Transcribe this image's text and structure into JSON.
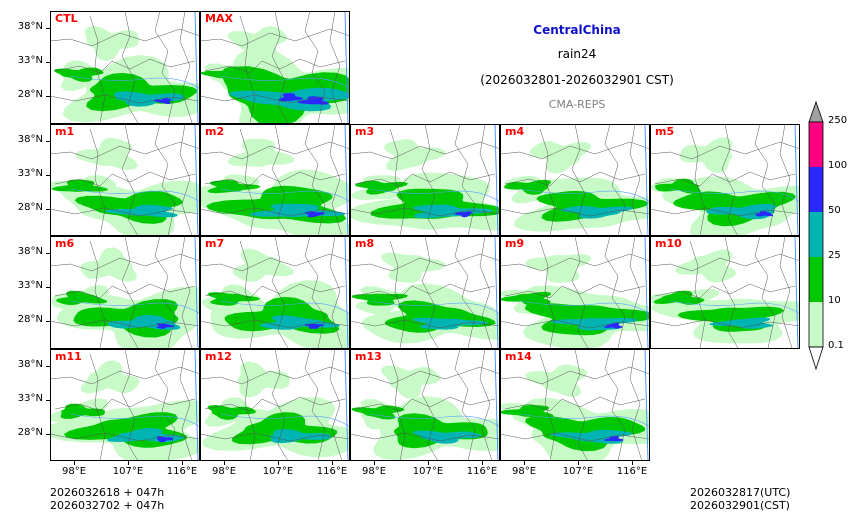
{
  "header": {
    "region": "CentralChina",
    "variable": "rain24",
    "period": "(2026032801-2026032901 CST)",
    "source": "CMA-REPS"
  },
  "colors": {
    "title": "#1010cc",
    "label": "#ff0000",
    "source": "#808080"
  },
  "panels": [
    {
      "label": "CTL",
      "intensity": 1.0
    },
    {
      "label": "MAX",
      "intensity": 1.6
    },
    {
      "label": "m1",
      "intensity": 0.9
    },
    {
      "label": "m2",
      "intensity": 1.1
    },
    {
      "label": "m3",
      "intensity": 1.0
    },
    {
      "label": "m4",
      "intensity": 0.9
    },
    {
      "label": "m5",
      "intensity": 1.0
    },
    {
      "label": "m6",
      "intensity": 1.0
    },
    {
      "label": "m7",
      "intensity": 1.0
    },
    {
      "label": "m8",
      "intensity": 0.9
    },
    {
      "label": "m9",
      "intensity": 1.0
    },
    {
      "label": "m10",
      "intensity": 0.8
    },
    {
      "label": "m11",
      "intensity": 1.0
    },
    {
      "label": "m12",
      "intensity": 0.9
    },
    {
      "label": "m13",
      "intensity": 0.9
    },
    {
      "label": "m14",
      "intensity": 1.0
    }
  ],
  "chart_data": {
    "type": "heatmap",
    "title": "CentralChina rain24 (2026032801-2026032901 CST)",
    "latitude_ticks": [
      "38°N",
      "33°N",
      "28°N"
    ],
    "longitude_ticks": [
      "98°E",
      "107°E",
      "116°E"
    ],
    "lat_values": [
      38,
      33,
      28
    ],
    "lon_values": [
      98,
      107,
      116
    ],
    "lon_range": [
      94,
      119
    ],
    "lat_range": [
      24,
      40.5
    ],
    "colorbar": {
      "levels": [
        "0.1",
        "10",
        "25",
        "50",
        "100",
        "250"
      ],
      "colors": [
        "#c8fac8",
        "#00c800",
        "#00b4b4",
        "#2828ff",
        "#ff0080"
      ],
      "extend_over_color": "#a0a0a0"
    }
  },
  "footer": {
    "left_line1": "2026032618  +  047h",
    "left_line2": "2026032702  +  047h",
    "right_line1": "2026032817(UTC)",
    "right_line2": "2026032901(CST)"
  }
}
